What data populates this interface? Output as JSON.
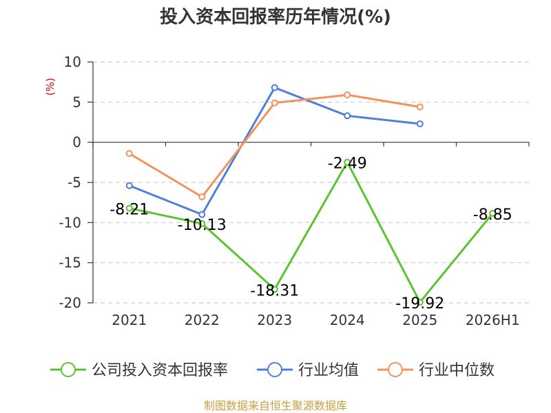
{
  "chart_data": {
    "type": "line",
    "title": "投入资本回报率历年情况(%)",
    "ylabel": "(%)",
    "categories": [
      "2021",
      "2022",
      "2023",
      "2024",
      "2025",
      "2026H1"
    ],
    "yticks": [
      "10",
      "5",
      "0",
      "-5",
      "-10",
      "-15",
      "-20"
    ],
    "ylim": [
      -20,
      10
    ],
    "grid": true,
    "legend_position": "bottom",
    "series": [
      {
        "name": "公司投入资本回报率",
        "color": "#5ac42e",
        "values": [
          -8.21,
          -10.13,
          -18.31,
          -2.49,
          -19.92,
          -8.85
        ],
        "labels": [
          "-8.21",
          "-10.13",
          "-18.31",
          "-2.49",
          "-19.92",
          "-8.85"
        ]
      },
      {
        "name": "行业均值",
        "color": "#4f7fd8",
        "values": [
          -5.4,
          -9.0,
          6.8,
          3.3,
          2.3,
          null
        ]
      },
      {
        "name": "行业中位数",
        "color": "#f5915a",
        "values": [
          -1.4,
          -6.8,
          4.9,
          5.9,
          4.4,
          null
        ]
      }
    ]
  },
  "source": "制图数据来自恒生聚源数据库"
}
